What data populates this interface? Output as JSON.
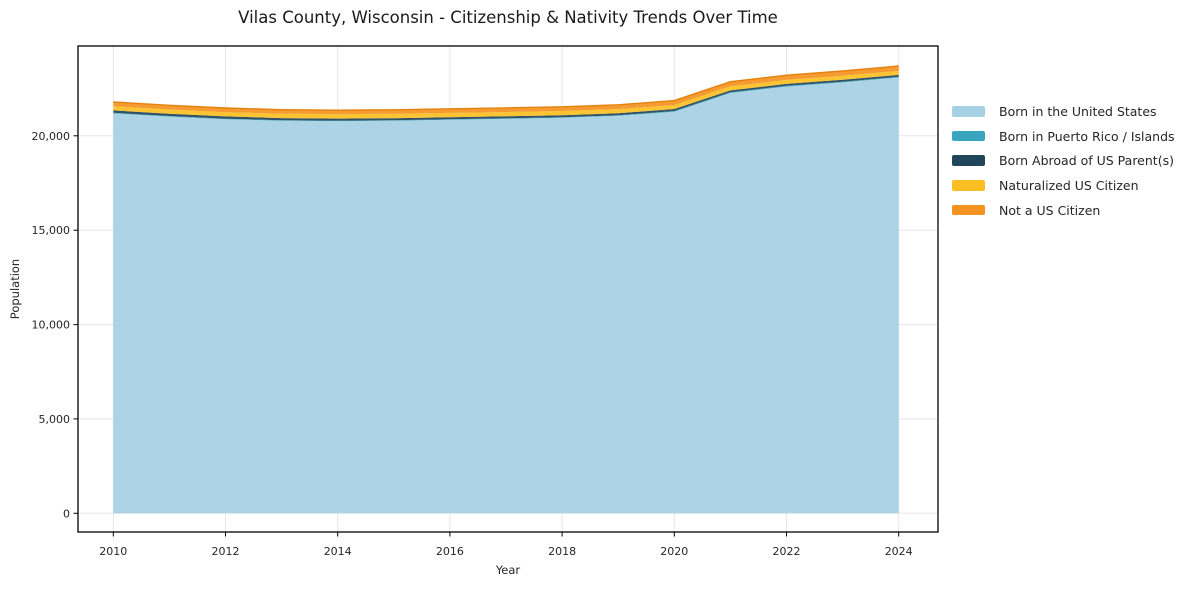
{
  "title": "Vilas County, Wisconsin - Citizenship & Nativity Trends Over Time",
  "chart_data": {
    "type": "area",
    "stacked": true,
    "title": "Vilas County, Wisconsin - Citizenship & Nativity Trends Over Time",
    "xlabel": "Year",
    "ylabel": "Population",
    "grid": true,
    "legend_position": "right-outside",
    "x": [
      2010,
      2011,
      2012,
      2013,
      2014,
      2015,
      2016,
      2017,
      2018,
      2019,
      2020,
      2021,
      2022,
      2023,
      2024
    ],
    "series": [
      {
        "name": "Born in the United States",
        "color": "#a6d0e4",
        "values": [
          21190,
          21020,
          20880,
          20800,
          20780,
          20800,
          20850,
          20900,
          20960,
          21060,
          21280,
          22270,
          22610,
          22830,
          23090
        ]
      },
      {
        "name": "Born in Puerto Rico / Islands",
        "color": "#39a5bf",
        "values": [
          30,
          30,
          30,
          25,
          25,
          25,
          30,
          30,
          30,
          35,
          35,
          40,
          40,
          40,
          40
        ]
      },
      {
        "name": "Born Abroad of US Parent(s)",
        "color": "#21465b",
        "values": [
          130,
          125,
          120,
          115,
          110,
          110,
          105,
          105,
          105,
          105,
          105,
          100,
          100,
          100,
          100
        ]
      },
      {
        "name": "Naturalized US Citizen",
        "color": "#fbbf23",
        "values": [
          215,
          220,
          225,
          230,
          235,
          235,
          230,
          225,
          220,
          215,
          210,
          215,
          215,
          210,
          210
        ]
      },
      {
        "name": "Not a US Citizen",
        "color": "#f59322",
        "values": [
          230,
          225,
          220,
          215,
          210,
          210,
          215,
          220,
          225,
          230,
          235,
          245,
          250,
          255,
          260
        ]
      }
    ],
    "stack_totals": [
      21795,
      21620,
      21475,
      21385,
      21360,
      21380,
      21430,
      21480,
      21540,
      21645,
      21865,
      22870,
      23215,
      23435,
      23700
    ],
    "x_ticks": [
      2010,
      2012,
      2014,
      2016,
      2018,
      2020,
      2022,
      2024
    ],
    "x_tick_labels": [
      "2010",
      "2012",
      "2014",
      "2016",
      "2018",
      "2020",
      "2022",
      "2024"
    ],
    "y_ticks": [
      0,
      5000,
      10000,
      15000,
      20000
    ],
    "y_tick_labels": [
      "0",
      "5,000",
      "10,000",
      "15,000",
      "20,000"
    ],
    "xlim": [
      2009.37,
      2024.7
    ],
    "ylim": [
      -990,
      24760
    ],
    "colors": {
      "grid": "#e7e7e7",
      "axis_border": "#000000",
      "tick_text": "#262626",
      "title_text": "#1a1a1a",
      "stack_top_edge": "#e5820e"
    }
  }
}
